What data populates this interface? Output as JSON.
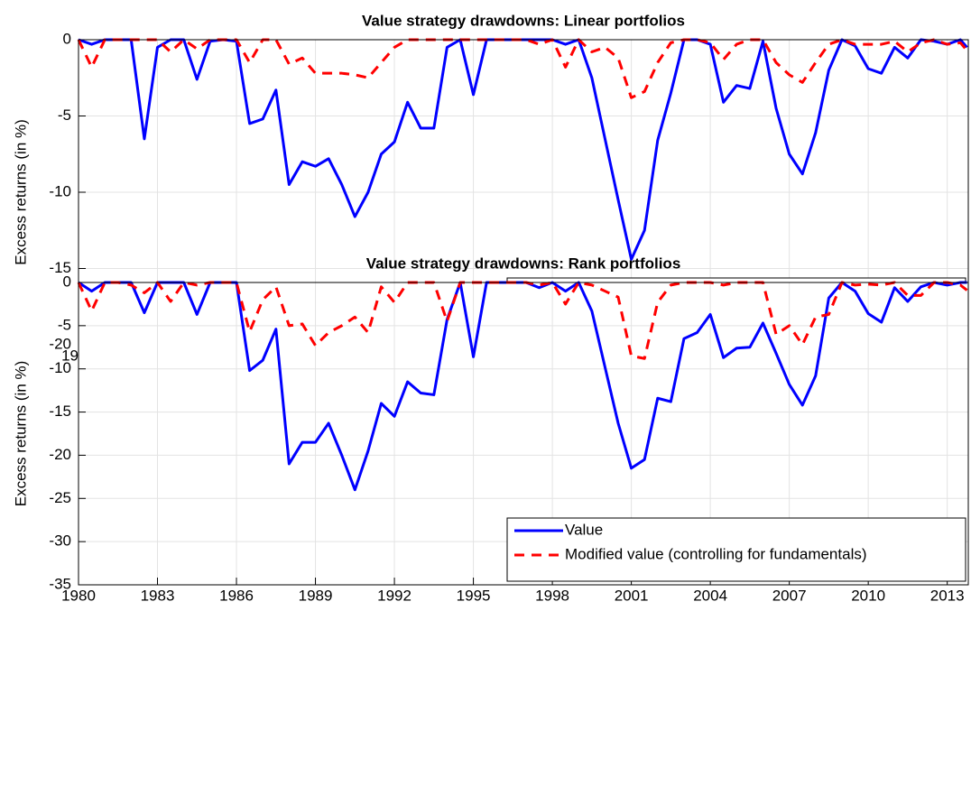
{
  "chart_data": [
    {
      "type": "line",
      "title": "Value strategy drawdowns: Linear portfolios",
      "y_label": "Excess returns (in %)",
      "x": [
        1980,
        1980.5,
        1981,
        1981.5,
        1982,
        1982.5,
        1983,
        1983.5,
        1984,
        1984.5,
        1985,
        1985.5,
        1986,
        1986.5,
        1987,
        1987.5,
        1988,
        1988.5,
        1989,
        1989.5,
        1990,
        1990.5,
        1991,
        1991.5,
        1992,
        1992.5,
        1993,
        1993.5,
        1994,
        1994.5,
        1995,
        1995.5,
        1996,
        1996.5,
        1997,
        1997.5,
        1998,
        1998.5,
        1999,
        1999.5,
        2000,
        2000.5,
        2001,
        2001.5,
        2002,
        2002.5,
        2003,
        2003.5,
        2004,
        2004.5,
        2005,
        2005.5,
        2006,
        2006.5,
        2007,
        2007.5,
        2008,
        2008.5,
        2009,
        2009.5,
        2010,
        2010.5,
        2011,
        2011.5,
        2012,
        2012.5,
        2013,
        2013.5,
        2013.75
      ],
      "series": [
        {
          "name": "Value",
          "color": "#0000ff",
          "linestyle": "solid",
          "values": [
            0,
            -0.3,
            0,
            0,
            0,
            -6.5,
            -0.5,
            0,
            0,
            -2.6,
            -0.1,
            0,
            -0.1,
            -5.5,
            -5.2,
            -3.3,
            -9.5,
            -8,
            -8.3,
            -7.8,
            -9.5,
            -11.6,
            -10,
            -7.5,
            -6.7,
            -4.1,
            -5.8,
            -5.8,
            -0.5,
            0,
            -3.6,
            0,
            0,
            0,
            0,
            0,
            0,
            -0.3,
            0,
            -2.5,
            -6.5,
            -10.5,
            -14.4,
            -12.5,
            -6.6,
            -3.5,
            0,
            0,
            -0.3,
            -4.1,
            -3,
            -3.2,
            -0.1,
            -4.5,
            -7.5,
            -8.8,
            -6.1,
            -2,
            0,
            -0.4,
            -1.9,
            -2.2,
            -0.5,
            -1.2,
            0,
            -0.1,
            -0.3,
            0,
            -0.5
          ]
        },
        {
          "name": "Modified value (controlling for fundamentals)",
          "color": "#ff0000",
          "linestyle": "dashed",
          "values": [
            0,
            -1.8,
            0,
            0,
            0,
            0,
            0,
            -0.8,
            0,
            -0.6,
            0,
            0,
            0,
            -1.5,
            0,
            0,
            -1.6,
            -1.2,
            -2.2,
            -2.2,
            -2.2,
            -2.3,
            -2.5,
            -1.5,
            -0.5,
            0,
            0,
            0,
            0,
            0,
            0,
            0,
            0,
            0,
            0,
            -0.3,
            0,
            -1.8,
            0,
            -0.8,
            -0.5,
            -1.2,
            -3.8,
            -3.4,
            -1.5,
            -0.2,
            0,
            0,
            -0.2,
            -1.3,
            -0.3,
            0,
            0,
            -1.5,
            -2.3,
            -2.8,
            -1.5,
            -0.3,
            0,
            -0.3,
            -0.3,
            -0.3,
            -0.1,
            -0.8,
            -0.2,
            0,
            -0.3,
            -0.2,
            -0.7
          ]
        }
      ],
      "xlim": [
        1980,
        2013.8
      ],
      "xticks": [
        1980,
        1983,
        1986,
        1989,
        1992,
        1995,
        1998,
        2001,
        2004,
        2007,
        2010,
        2013
      ],
      "ylim": [
        -20,
        0
      ],
      "yticks": [
        -20,
        -15,
        -10,
        -5,
        0
      ],
      "grid": true,
      "legend": "lower right"
    },
    {
      "type": "line",
      "title": "Value strategy drawdowns: Rank portfolios",
      "y_label": "Excess returns (in %)",
      "x": [
        1980,
        1980.5,
        1981,
        1981.5,
        1982,
        1982.5,
        1983,
        1983.5,
        1984,
        1984.5,
        1985,
        1985.5,
        1986,
        1986.5,
        1987,
        1987.5,
        1988,
        1988.5,
        1989,
        1989.5,
        1990,
        1990.5,
        1991,
        1991.5,
        1992,
        1992.5,
        1993,
        1993.5,
        1994,
        1994.5,
        1995,
        1995.5,
        1996,
        1996.5,
        1997,
        1997.5,
        1998,
        1998.5,
        1999,
        1999.5,
        2000,
        2000.5,
        2001,
        2001.5,
        2002,
        2002.5,
        2003,
        2003.5,
        2004,
        2004.5,
        2005,
        2005.5,
        2006,
        2006.5,
        2007,
        2007.5,
        2008,
        2008.5,
        2009,
        2009.5,
        2010,
        2010.5,
        2011,
        2011.5,
        2012,
        2012.5,
        2013,
        2013.5,
        2013.75
      ],
      "series": [
        {
          "name": "Value",
          "color": "#0000ff",
          "linestyle": "solid",
          "values": [
            0,
            -1,
            0,
            0,
            0,
            -3.5,
            0,
            0,
            0,
            -3.7,
            0,
            0,
            0,
            -10.2,
            -9,
            -5.4,
            -21,
            -18.5,
            -18.5,
            -16.3,
            -20,
            -24,
            -19.5,
            -14,
            -15.5,
            -11.5,
            -12.8,
            -13,
            -4.3,
            0,
            -8.6,
            0,
            0,
            0,
            0,
            -0.6,
            0,
            -1,
            0,
            -3.3,
            -9.8,
            -16.3,
            -21.5,
            -20.5,
            -13.4,
            -13.8,
            -6.5,
            -5.8,
            -3.7,
            -8.7,
            -7.6,
            -7.5,
            -4.7,
            -8.2,
            -11.8,
            -14.2,
            -10.8,
            -1.8,
            0,
            -1,
            -3.6,
            -4.6,
            -0.6,
            -2.2,
            -0.5,
            0,
            -0.3,
            0,
            0
          ]
        },
        {
          "name": "Modified value (controlling for fundamentals)",
          "color": "#ff0000",
          "linestyle": "dashed",
          "values": [
            0,
            -3.3,
            0,
            0,
            -0.3,
            -1.2,
            0,
            -2.2,
            0,
            -0.3,
            0,
            0,
            0,
            -5.7,
            -2,
            -0.5,
            -5,
            -4.8,
            -7.3,
            -5.8,
            -5,
            -4,
            -5.8,
            -0.5,
            -2.3,
            0,
            0,
            0,
            -4.5,
            0,
            0,
            0,
            0,
            0,
            0,
            -0.3,
            0,
            -2.5,
            0,
            -0.3,
            -1,
            -1.7,
            -8.5,
            -8.8,
            -2.3,
            -0.3,
            0,
            0,
            0,
            -0.3,
            0,
            0,
            0,
            -6,
            -5,
            -7.2,
            -4,
            -3.7,
            0,
            -0.3,
            -0.2,
            -0.3,
            0,
            -1.5,
            -1.5,
            0,
            0,
            -0.3,
            -0.9
          ]
        }
      ],
      "xlim": [
        1980,
        2013.8
      ],
      "xticks": [
        1980,
        1983,
        1986,
        1989,
        1992,
        1995,
        1998,
        2001,
        2004,
        2007,
        2010,
        2013
      ],
      "ylim": [
        -35,
        0
      ],
      "yticks": [
        -35,
        -30,
        -25,
        -20,
        -15,
        -10,
        -5,
        0
      ],
      "grid": true,
      "legend": "lower right"
    }
  ]
}
